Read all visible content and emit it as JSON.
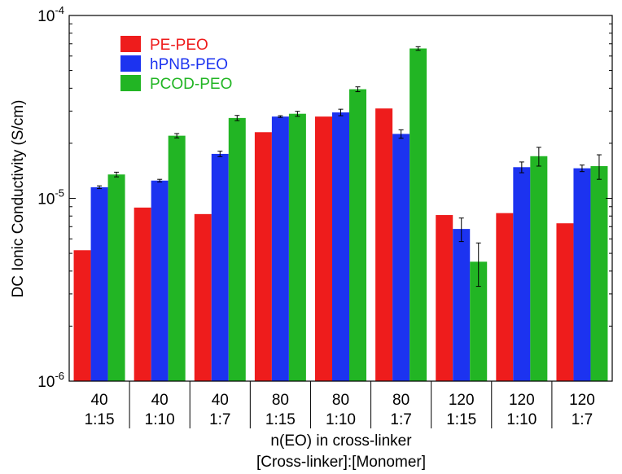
{
  "chart_data": {
    "type": "bar",
    "title": "",
    "ylabel": "DC Ionic Conductivity (S/cm)",
    "xlabel_lines": [
      "n(EO) in cross-linker",
      "[Cross-linker]:[Monomer]"
    ],
    "yscale": "log",
    "ylim": [
      1e-06,
      0.0001
    ],
    "y_ticks": [
      {
        "value": 1e-06,
        "mantissa": "10",
        "exp": "-6"
      },
      {
        "value": 1e-05,
        "mantissa": "10",
        "exp": "-5"
      },
      {
        "value": 0.0001,
        "mantissa": "10",
        "exp": "-4"
      }
    ],
    "categories": [
      {
        "line1": "40",
        "line2": "1:15"
      },
      {
        "line1": "40",
        "line2": "1:10"
      },
      {
        "line1": "40",
        "line2": "1:7"
      },
      {
        "line1": "80",
        "line2": "1:15"
      },
      {
        "line1": "80",
        "line2": "1:10"
      },
      {
        "line1": "80",
        "line2": "1:7"
      },
      {
        "line1": "120",
        "line2": "1:15"
      },
      {
        "line1": "120",
        "line2": "1:10"
      },
      {
        "line1": "120",
        "line2": "1:7"
      }
    ],
    "series": [
      {
        "name": "PE-PEO",
        "color": "#ee1c1c",
        "values": [
          5.2e-06,
          8.9e-06,
          8.2e-06,
          2.3e-05,
          2.8e-05,
          3.1e-05,
          8.1e-06,
          8.3e-06,
          7.3e-06
        ],
        "errors": [
          0,
          0,
          0,
          0,
          0,
          0,
          0,
          0,
          0
        ]
      },
      {
        "name": "hPNB-PEO",
        "color": "#1c33f0",
        "values": [
          1.15e-05,
          1.25e-05,
          1.75e-05,
          2.8e-05,
          2.95e-05,
          2.25e-05,
          6.8e-06,
          1.48e-05,
          1.46e-05
        ],
        "errors": [
          2e-07,
          2e-07,
          6e-07,
          3e-07,
          1.2e-06,
          1.2e-06,
          1e-06,
          1e-06,
          6e-07
        ]
      },
      {
        "name": "PCOD-PEO",
        "color": "#22b524",
        "values": [
          1.35e-05,
          2.2e-05,
          2.75e-05,
          2.9e-05,
          3.95e-05,
          6.6e-05,
          4.5e-06,
          1.7e-05,
          1.5e-05
        ],
        "errors": [
          4e-07,
          6e-07,
          9e-07,
          9e-07,
          1.2e-06,
          1.5e-06,
          1.2e-06,
          2e-06,
          2.3e-06
        ]
      }
    ],
    "legend_position": "top-left"
  }
}
